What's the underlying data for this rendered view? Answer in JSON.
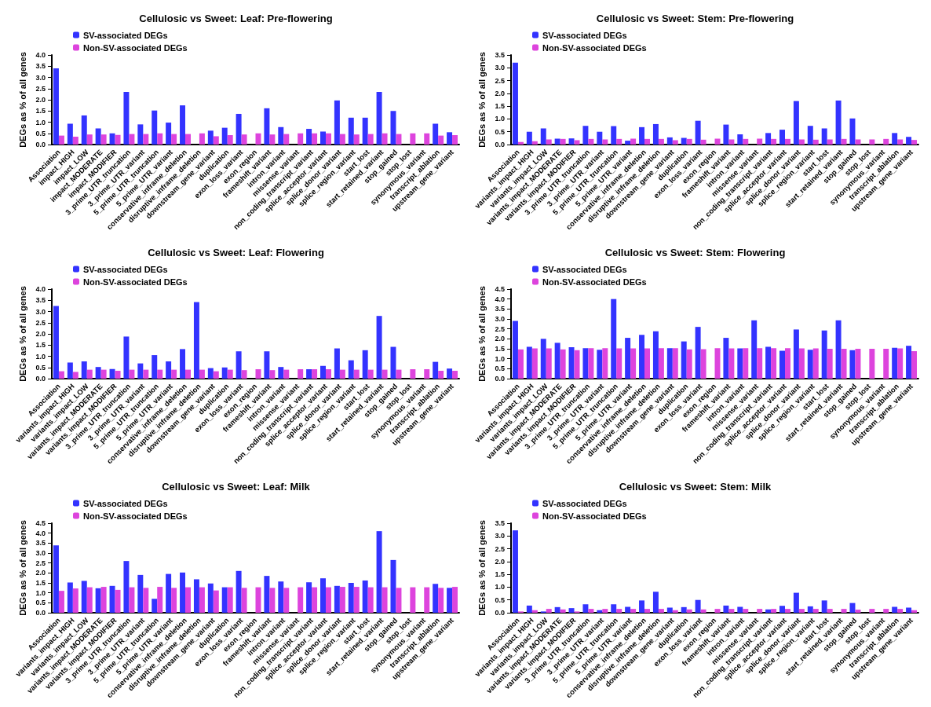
{
  "chart_data": [
    {
      "type": "bar",
      "title": "Cellulosic vs Sweet: Leaf: Pre-flowering",
      "ylabel": "DEGs as % of all genes",
      "legend": "top left",
      "grid": false,
      "categories": [
        "Association",
        "impact_HIGH",
        "impact_LOW",
        "impact_MODERATE",
        "impact_MODIFIER",
        "3_prime_UTR_truncation",
        "3_prime_UTR_variant",
        "5_prime_UTR_truncation",
        "5_prime_UTR_variant",
        "conservative_inframe_deletion",
        "disruptive_inframe_deletion",
        "downstream_gene_variant",
        "duplication",
        "exon_loss_variant",
        "exon_region",
        "frameshift_variant",
        "intron_variant",
        "missense_variant",
        "non_coding_transcript_variant",
        "splice_acceptor_variant",
        "splice_donor_variant",
        "splice_region_variant",
        "start_lost",
        "start_retained_variant",
        "stop_gained",
        "stop_lost",
        "synonymous_variant",
        "transcript_ablation",
        "upstream_gene_variant"
      ],
      "ylim": [
        0,
        4
      ],
      "yticks": [
        {
          "value": 0,
          "label": "0.0"
        },
        {
          "value": 0.5,
          "label": "0.5"
        },
        {
          "value": 1,
          "label": "1.0"
        },
        {
          "value": 1.5,
          "label": "1.5"
        },
        {
          "value": 2,
          "label": "2.0"
        },
        {
          "value": 2.5,
          "label": "2.5"
        },
        {
          "value": 3,
          "label": "3.0"
        },
        {
          "value": 3.5,
          "label": "3.5"
        },
        {
          "value": 4,
          "label": "4.0"
        }
      ],
      "series": [
        {
          "name": "SV-associated DEGs",
          "color": "#3333ff",
          "values": [
            3.4,
            0.93,
            1.3,
            0.72,
            0.5,
            2.35,
            0.9,
            1.52,
            0.98,
            1.75,
            null,
            0.62,
            0.75,
            1.37,
            null,
            1.62,
            0.78,
            null,
            0.7,
            0.58,
            1.97,
            1.2,
            1.2,
            2.35,
            1.5,
            null,
            null,
            0.93,
            0.55
          ]
        },
        {
          "name": "Non-SV-associated DEGs",
          "color": "#dd44dd",
          "values": [
            0.4,
            0.35,
            0.45,
            0.45,
            0.43,
            0.47,
            0.47,
            0.5,
            0.47,
            0.47,
            0.5,
            0.37,
            0.42,
            0.45,
            0.5,
            0.45,
            0.47,
            0.5,
            0.5,
            0.5,
            0.47,
            0.45,
            0.47,
            0.5,
            0.47,
            0.5,
            0.5,
            0.4,
            0.42
          ]
        }
      ]
    },
    {
      "type": "bar",
      "title": "Cellulosic vs Sweet: Stem: Pre-flowering",
      "ylabel": "DEGs as % of all genes",
      "legend": "top left",
      "grid": false,
      "categories": [
        "Association",
        "variants_impact_HIGH",
        "variants_impact_LOW",
        "variants_impact_MODERATE",
        "variants_impact_MODIFIER",
        "3_prime_UTR_truncation",
        "3_prime_UTR_variant",
        "5_prime_UTR_truncation",
        "5_prime_UTR_variant",
        "conservative_inframe_deletion",
        "disruptive_inframe_deletion",
        "downstream_gene_variant",
        "duplication",
        "exon_loss_variant",
        "exon_region",
        "frameshift_variant",
        "intron_variant",
        "missense_variant",
        "non_coding_transcript_variant",
        "splice_acceptor_variant",
        "splice_donor_variant",
        "splice_region_variant",
        "start_lost",
        "start_retained_variant",
        "stop_gained",
        "stop_lost",
        "synonymous_variant",
        "transcript_ablation",
        "upstream_gene_variant"
      ],
      "ylim": [
        0,
        3.5
      ],
      "yticks": [
        {
          "value": 0,
          "label": "0.0"
        },
        {
          "value": 0.5,
          "label": "0.5"
        },
        {
          "value": 1,
          "label": "1.0"
        },
        {
          "value": 1.5,
          "label": "1.5"
        },
        {
          "value": 2,
          "label": "2.0"
        },
        {
          "value": 2.5,
          "label": "2.5"
        },
        {
          "value": 3,
          "label": "3.0"
        },
        {
          "value": 3.5,
          "label": "3.5"
        }
      ],
      "series": [
        {
          "name": "SV-associated DEGs",
          "color": "#3333ff",
          "values": [
            3.2,
            0.5,
            0.63,
            0.23,
            0.24,
            0.73,
            0.5,
            0.72,
            0.15,
            0.68,
            0.8,
            0.28,
            0.26,
            0.93,
            null,
            0.78,
            0.4,
            null,
            0.45,
            0.58,
            1.7,
            0.73,
            0.63,
            1.72,
            1.02,
            null,
            null,
            0.45,
            0.3
          ]
        },
        {
          "name": "Non-SV-associated DEGs",
          "color": "#dd44dd",
          "values": [
            0.1,
            0.13,
            0.2,
            0.22,
            0.17,
            0.22,
            0.2,
            0.22,
            0.23,
            0.22,
            0.22,
            0.17,
            0.22,
            0.19,
            0.23,
            0.2,
            0.22,
            0.23,
            0.22,
            0.22,
            0.2,
            0.19,
            0.2,
            0.22,
            0.2,
            0.2,
            0.22,
            0.2,
            0.18
          ]
        }
      ]
    },
    {
      "type": "bar",
      "title": "Cellulosic vs Sweet: Leaf: Flowering",
      "ylabel": "DEGs as % of all genes",
      "legend": "top left",
      "grid": false,
      "categories": [
        "Association",
        "variants_impact_HIGH",
        "variants_impact_LOW",
        "variants_impact_MODERATE",
        "variants_impact_MODIFIER",
        "3_prime_UTR_truncation",
        "3_prime_UTR_variant",
        "5_prime_UTR_truncation",
        "5_prime_UTR_variant",
        "conservative_inframe_deletion",
        "disruptive_inframe_deletion",
        "downstream_gene_variant",
        "duplication",
        "exon_loss_variant",
        "exon_region",
        "frameshift_variant",
        "intron_variant",
        "missense_variant",
        "non_coding_transcript_variant",
        "splice_acceptor_variant",
        "splice_donor_variant",
        "splice_region_variant",
        "start_lost",
        "start_retained_variant",
        "stop_gained",
        "stop_lost",
        "synonymous_variant",
        "transcript_ablation",
        "upstream_gene_variant"
      ],
      "ylim": [
        0,
        4
      ],
      "yticks": [
        {
          "value": 0,
          "label": "0.0"
        },
        {
          "value": 0.5,
          "label": "0.5"
        },
        {
          "value": 1,
          "label": "1.0"
        },
        {
          "value": 1.5,
          "label": "1.5"
        },
        {
          "value": 2,
          "label": "2.0"
        },
        {
          "value": 2.5,
          "label": "2.5"
        },
        {
          "value": 3,
          "label": "3.0"
        },
        {
          "value": 3.5,
          "label": "3.5"
        },
        {
          "value": 4,
          "label": "4.0"
        }
      ],
      "series": [
        {
          "name": "SV-associated DEGs",
          "color": "#3333ff",
          "values": [
            3.25,
            0.72,
            0.77,
            0.52,
            0.43,
            1.88,
            0.68,
            1.05,
            0.77,
            1.32,
            3.42,
            0.47,
            0.5,
            1.22,
            null,
            1.22,
            0.52,
            null,
            0.42,
            0.57,
            1.35,
            0.82,
            1.27,
            2.8,
            1.42,
            null,
            null,
            0.75,
            0.45
          ]
        },
        {
          "name": "Non-SV-associated DEGs",
          "color": "#dd44dd",
          "values": [
            0.33,
            0.3,
            0.4,
            0.4,
            0.35,
            0.4,
            0.4,
            0.4,
            0.4,
            0.4,
            0.4,
            0.33,
            0.4,
            0.38,
            0.42,
            0.38,
            0.4,
            0.42,
            0.42,
            0.42,
            0.4,
            0.4,
            0.4,
            0.4,
            0.4,
            0.42,
            0.42,
            0.35,
            0.35
          ]
        }
      ]
    },
    {
      "type": "bar",
      "title": "Cellulosic vs Sweet: Stem: Flowering",
      "ylabel": "DEGs as % of all genes",
      "legend": "top left",
      "grid": false,
      "categories": [
        "Association",
        "variants_impact_HIGH",
        "variants_impact_LOW",
        "variants_impact_MODERATE",
        "variants_impact_MODIFIER",
        "3_prime_UTR_truncation",
        "3_prime_UTR_variant",
        "5_prime_UTR_truncation",
        "5_prime_UTR_variant",
        "conservative_inframe_deletion",
        "disruptive_inframe_deletion",
        "downstream_gene_variant",
        "duplication",
        "exon_loss_variant",
        "exon_region",
        "frameshift_variant",
        "intron_variant",
        "missense_variant",
        "non_coding_transcript_variant",
        "splice_acceptor_variant",
        "splice_donor_variant",
        "splice_region_variant",
        "start_lost",
        "start_retained_variant",
        "stop_gained",
        "stop_lost",
        "synonymous_variant",
        "transcript_ablation",
        "upstream_gene_variant"
      ],
      "ylim": [
        0,
        4.5
      ],
      "yticks": [
        {
          "value": 0,
          "label": "0.0"
        },
        {
          "value": 0.5,
          "label": "0.5"
        },
        {
          "value": 1,
          "label": "1.0"
        },
        {
          "value": 1.5,
          "label": "1.5"
        },
        {
          "value": 2,
          "label": "2.0"
        },
        {
          "value": 2.5,
          "label": "2.5"
        },
        {
          "value": 3,
          "label": "3.0"
        },
        {
          "value": 3.5,
          "label": "3.5"
        },
        {
          "value": 4,
          "label": "4.0"
        },
        {
          "value": 4.5,
          "label": "4.5"
        }
      ],
      "series": [
        {
          "name": "SV-associated DEGs",
          "color": "#3333ff",
          "values": [
            2.9,
            1.6,
            2.0,
            1.8,
            1.58,
            1.53,
            1.45,
            4.0,
            2.05,
            2.2,
            2.38,
            1.53,
            1.87,
            2.6,
            null,
            2.05,
            1.52,
            2.93,
            1.6,
            1.4,
            2.47,
            1.45,
            2.42,
            2.93,
            1.43,
            null,
            null,
            1.55,
            1.65
          ]
        },
        {
          "name": "Non-SV-associated DEGs",
          "color": "#dd44dd",
          "values": [
            1.47,
            1.52,
            1.52,
            1.47,
            1.43,
            1.53,
            1.53,
            1.52,
            1.52,
            1.52,
            1.53,
            1.53,
            1.47,
            1.48,
            1.53,
            1.52,
            1.53,
            1.53,
            1.53,
            1.53,
            1.52,
            1.52,
            1.5,
            1.5,
            1.5,
            1.5,
            1.5,
            1.52,
            1.38
          ]
        }
      ]
    },
    {
      "type": "bar",
      "title": "Cellulosic vs Sweet: Leaf: Milk",
      "ylabel": "DEGs as % of all genes",
      "legend": "top left",
      "grid": false,
      "categories": [
        "Association",
        "variants_impact_HIGH",
        "variants_impact_LOW",
        "variants_impact_MODERATE",
        "variants_impact_MODIFIER",
        "3_prime_UTR_truncation",
        "3_prime_UTR_variant",
        "5_prime_UTR_truncation",
        "5_prime_UTR_variant",
        "conservative_inframe_deletion",
        "disruptive_inframe_deletion",
        "downstream_gene_variant",
        "duplication",
        "exon_loss_variant",
        "exon_region",
        "frameshift_variant",
        "intron_variant",
        "missense_variant",
        "non_coding_transcript_variant",
        "splice_acceptor_variant",
        "splice_donor_variant",
        "splice_region_variant",
        "start_lost",
        "start_retained_variant",
        "stop_gained",
        "stop_lost",
        "synonymous_variant",
        "transcript_ablation",
        "upstream_gene_variant"
      ],
      "ylim": [
        0,
        4.5
      ],
      "yticks": [
        {
          "value": 0,
          "label": "0.0"
        },
        {
          "value": 0.5,
          "label": "0.5"
        },
        {
          "value": 1,
          "label": "1.0"
        },
        {
          "value": 1.5,
          "label": "1.5"
        },
        {
          "value": 2,
          "label": "2.0"
        },
        {
          "value": 2.5,
          "label": "2.5"
        },
        {
          "value": 3,
          "label": "3.0"
        },
        {
          "value": 3.5,
          "label": "3.5"
        },
        {
          "value": 4,
          "label": "4.0"
        },
        {
          "value": 4.5,
          "label": "4.5"
        }
      ],
      "series": [
        {
          "name": "SV-associated DEGs",
          "color": "#3333ff",
          "values": [
            3.38,
            1.52,
            1.6,
            1.23,
            1.35,
            2.6,
            1.9,
            0.7,
            1.95,
            2.02,
            1.68,
            1.47,
            1.28,
            2.1,
            null,
            1.85,
            1.57,
            null,
            1.53,
            1.73,
            1.35,
            1.5,
            1.62,
            4.1,
            2.65,
            null,
            null,
            1.45,
            1.25
          ]
        },
        {
          "name": "Non-SV-associated DEGs",
          "color": "#dd44dd",
          "values": [
            1.1,
            1.22,
            1.28,
            1.3,
            1.15,
            1.28,
            1.25,
            1.3,
            1.25,
            1.28,
            1.28,
            1.12,
            1.28,
            1.25,
            1.28,
            1.25,
            1.25,
            1.28,
            1.28,
            1.28,
            1.3,
            1.3,
            1.28,
            1.28,
            1.25,
            1.28,
            1.28,
            1.25,
            1.3
          ]
        }
      ]
    },
    {
      "type": "bar",
      "title": "Cellulosic vs Sweet: Stem: Milk",
      "ylabel": "DEGs as % of all genes",
      "legend": "top left",
      "grid": false,
      "categories": [
        "Association",
        "variants_impact_HIGH",
        "variants_impact_LOW",
        "variants_impact_MODERATE",
        "variants_impact_MODIFIER",
        "3_prime_UTR_truncation",
        "3_prime_UTR_variant",
        "5_prime_UTR_truncation",
        "5_prime_UTR_variant",
        "conservative_inframe_deletion",
        "disruptive_inframe_deletion",
        "downstream_gene_variant",
        "duplication",
        "exon_loss_variant",
        "exon_region",
        "frameshift_variant",
        "intron_variant",
        "missense_variant",
        "non_coding_transcript_variant",
        "splice_acceptor_variant",
        "splice_donor_variant",
        "splice_region_variant",
        "start_lost",
        "start_retained_variant",
        "stop_gained",
        "stop_lost",
        "synonymous_variant",
        "transcript_ablation",
        "upstream_gene_variant"
      ],
      "ylim": [
        0,
        3.5
      ],
      "yticks": [
        {
          "value": 0,
          "label": "0.0"
        },
        {
          "value": 0.5,
          "label": "0.5"
        },
        {
          "value": 1,
          "label": "1.0"
        },
        {
          "value": 1.5,
          "label": "1.5"
        },
        {
          "value": 2,
          "label": "2.0"
        },
        {
          "value": 2.5,
          "label": "2.5"
        },
        {
          "value": 3,
          "label": "3.0"
        },
        {
          "value": 3.5,
          "label": "3.5"
        }
      ],
      "series": [
        {
          "name": "SV-associated DEGs",
          "color": "#3333ff",
          "values": [
            3.22,
            0.28,
            0.05,
            0.22,
            0.18,
            0.33,
            0.1,
            0.33,
            0.23,
            0.48,
            0.82,
            0.2,
            0.22,
            0.5,
            null,
            0.28,
            0.23,
            null,
            0.13,
            0.27,
            0.78,
            0.25,
            0.48,
            null,
            0.38,
            null,
            null,
            0.23,
            0.2
          ]
        },
        {
          "name": "Non-SV-associated DEGs",
          "color": "#dd44dd",
          "values": [
            0.05,
            0.1,
            0.15,
            0.13,
            0.05,
            0.15,
            0.15,
            0.15,
            0.15,
            0.15,
            0.15,
            0.1,
            0.13,
            0.13,
            0.15,
            0.15,
            0.15,
            0.15,
            0.15,
            0.15,
            0.15,
            0.15,
            0.15,
            0.15,
            0.12,
            0.15,
            0.15,
            0.15,
            0.1
          ]
        }
      ]
    }
  ]
}
